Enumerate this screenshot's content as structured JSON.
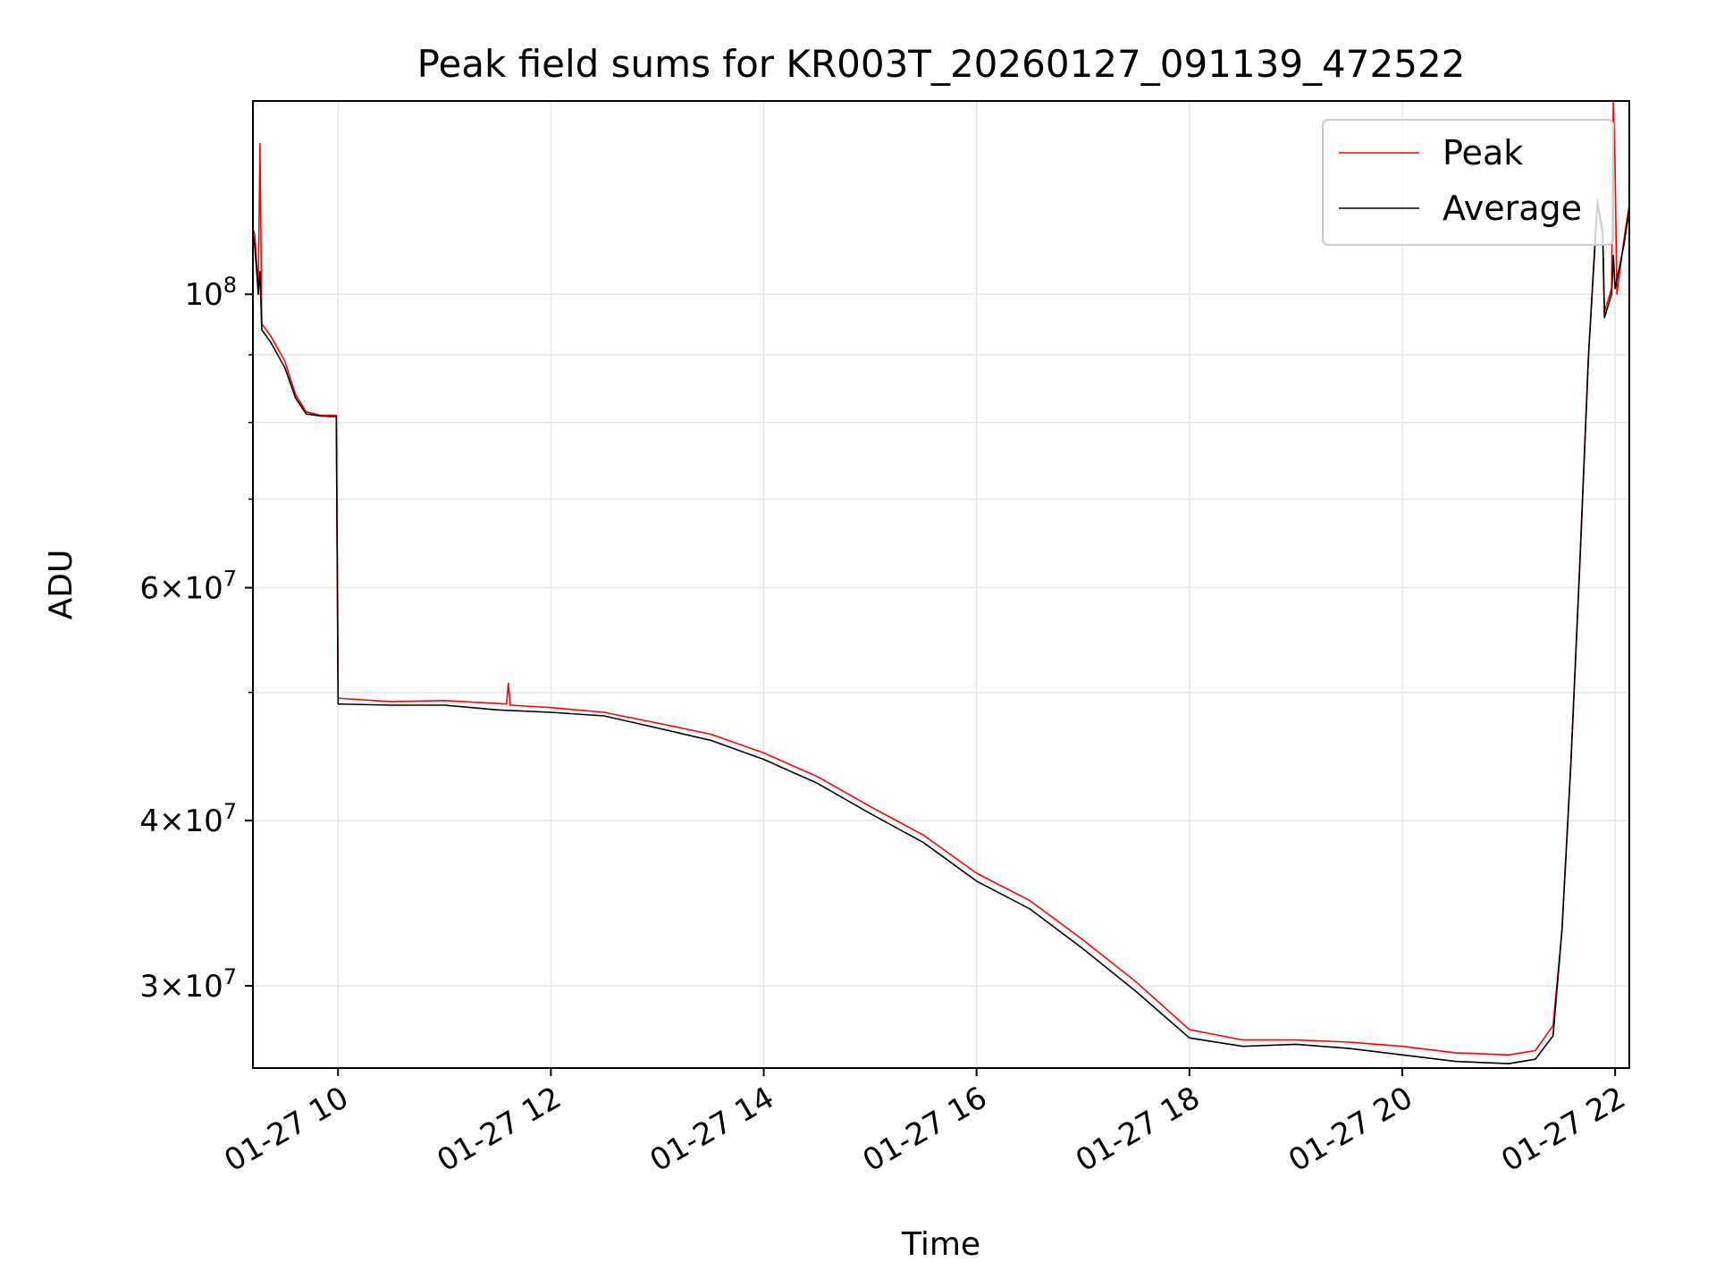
{
  "chart_data": {
    "type": "line",
    "title": "Peak field sums for KR003T_20260127_091139_472522",
    "xlabel": "Time",
    "ylabel": "ADU",
    "x_scale": "time",
    "y_scale": "log",
    "xlim": [
      "01-27 09:12",
      "01-27 22:08"
    ],
    "ylim": [
      26000000,
      140000000
    ],
    "x_ticks": [
      {
        "value": "01-27 10:00",
        "label": "01-27 10"
      },
      {
        "value": "01-27 12:00",
        "label": "01-27 12"
      },
      {
        "value": "01-27 14:00",
        "label": "01-27 14"
      },
      {
        "value": "01-27 16:00",
        "label": "01-27 16"
      },
      {
        "value": "01-27 18:00",
        "label": "01-27 18"
      },
      {
        "value": "01-27 20:00",
        "label": "01-27 20"
      },
      {
        "value": "01-27 22:00",
        "label": "01-27 22"
      }
    ],
    "y_ticks": [
      {
        "value": 30000000,
        "base": "3",
        "exp": "7"
      },
      {
        "value": 40000000,
        "base": "4",
        "exp": "7"
      },
      {
        "value": 60000000,
        "base": "6",
        "exp": "7"
      },
      {
        "value": 100000000,
        "base": "",
        "exp": "8"
      }
    ],
    "grid": true,
    "legend_position": "top-right",
    "series": [
      {
        "name": "Peak",
        "color": "#ff0000",
        "points": [
          [
            "01-27 09:12",
            112000000
          ],
          [
            "01-27 09:13",
            111000000
          ],
          [
            "01-27 09:15",
            101000000
          ],
          [
            "01-27 09:16",
            130000000
          ],
          [
            "01-27 09:17",
            95000000
          ],
          [
            "01-27 09:22",
            93000000
          ],
          [
            "01-27 09:30",
            89000000
          ],
          [
            "01-27 09:36",
            84000000
          ],
          [
            "01-27 09:42",
            81500000
          ],
          [
            "01-27 09:50",
            81000000
          ],
          [
            "01-27 09:59",
            81000000
          ],
          [
            "01-27 10:00",
            49500000
          ],
          [
            "01-27 10:30",
            49200000
          ],
          [
            "01-27 11:00",
            49300000
          ],
          [
            "01-27 11:35",
            49000000
          ],
          [
            "01-27 11:36",
            50800000
          ],
          [
            "01-27 11:37",
            48900000
          ],
          [
            "01-27 12:00",
            48700000
          ],
          [
            "01-27 12:30",
            48300000
          ],
          [
            "01-27 13:00",
            47400000
          ],
          [
            "01-27 13:30",
            46500000
          ],
          [
            "01-27 14:00",
            45000000
          ],
          [
            "01-27 14:30",
            43200000
          ],
          [
            "01-27 15:00",
            41000000
          ],
          [
            "01-27 15:30",
            39000000
          ],
          [
            "01-27 16:00",
            36500000
          ],
          [
            "01-27 16:30",
            34800000
          ],
          [
            "01-27 17:00",
            32500000
          ],
          [
            "01-27 17:30",
            30200000
          ],
          [
            "01-27 18:00",
            27800000
          ],
          [
            "01-27 18:30",
            27300000
          ],
          [
            "01-27 19:00",
            27300000
          ],
          [
            "01-27 19:30",
            27200000
          ],
          [
            "01-27 20:00",
            27000000
          ],
          [
            "01-27 20:30",
            26700000
          ],
          [
            "01-27 21:00",
            26600000
          ],
          [
            "01-27 21:15",
            26800000
          ],
          [
            "01-27 21:25",
            28000000
          ],
          [
            "01-27 21:30",
            33000000
          ],
          [
            "01-27 21:35",
            44000000
          ],
          [
            "01-27 21:40",
            62000000
          ],
          [
            "01-27 21:45",
            90000000
          ],
          [
            "01-27 21:50",
            118000000
          ],
          [
            "01-27 21:53",
            112000000
          ],
          [
            "01-27 21:54",
            97000000
          ],
          [
            "01-27 21:58",
            101000000
          ],
          [
            "01-27 21:59",
            140000000
          ],
          [
            "01-27 22:00",
            125000000
          ],
          [
            "01-27 22:01",
            100000000
          ],
          [
            "01-27 22:05",
            110000000
          ],
          [
            "01-27 22:08",
            117000000
          ]
        ]
      },
      {
        "name": "Average",
        "color": "#000000",
        "points": [
          [
            "01-27 09:12",
            111000000
          ],
          [
            "01-27 09:13",
            109000000
          ],
          [
            "01-27 09:15",
            100000000
          ],
          [
            "01-27 09:16",
            104000000
          ],
          [
            "01-27 09:17",
            94000000
          ],
          [
            "01-27 09:22",
            92000000
          ],
          [
            "01-27 09:30",
            88000000
          ],
          [
            "01-27 09:36",
            83500000
          ],
          [
            "01-27 09:42",
            81200000
          ],
          [
            "01-27 09:50",
            80900000
          ],
          [
            "01-27 09:59",
            80800000
          ],
          [
            "01-27 10:00",
            49000000
          ],
          [
            "01-27 10:30",
            48900000
          ],
          [
            "01-27 11:00",
            48900000
          ],
          [
            "01-27 11:30",
            48500000
          ],
          [
            "01-27 12:00",
            48300000
          ],
          [
            "01-27 12:30",
            48000000
          ],
          [
            "01-27 13:00",
            47000000
          ],
          [
            "01-27 13:30",
            46000000
          ],
          [
            "01-27 14:00",
            44500000
          ],
          [
            "01-27 14:30",
            42700000
          ],
          [
            "01-27 15:00",
            40500000
          ],
          [
            "01-27 15:30",
            38500000
          ],
          [
            "01-27 16:00",
            36000000
          ],
          [
            "01-27 16:30",
            34300000
          ],
          [
            "01-27 17:00",
            32000000
          ],
          [
            "01-27 17:30",
            29700000
          ],
          [
            "01-27 18:00",
            27400000
          ],
          [
            "01-27 18:30",
            27000000
          ],
          [
            "01-27 19:00",
            27100000
          ],
          [
            "01-27 19:30",
            26900000
          ],
          [
            "01-27 20:00",
            26600000
          ],
          [
            "01-27 20:30",
            26300000
          ],
          [
            "01-27 21:00",
            26200000
          ],
          [
            "01-27 21:15",
            26400000
          ],
          [
            "01-27 21:25",
            27500000
          ],
          [
            "01-27 21:30",
            33000000
          ],
          [
            "01-27 21:35",
            44000000
          ],
          [
            "01-27 21:40",
            62000000
          ],
          [
            "01-27 21:45",
            90000000
          ],
          [
            "01-27 21:50",
            117000000
          ],
          [
            "01-27 21:53",
            111000000
          ],
          [
            "01-27 21:54",
            96000000
          ],
          [
            "01-27 21:58",
            100000000
          ],
          [
            "01-27 21:59",
            107000000
          ],
          [
            "01-27 22:00",
            101000000
          ],
          [
            "01-27 22:05",
            109000000
          ],
          [
            "01-27 22:08",
            116000000
          ]
        ]
      }
    ]
  }
}
